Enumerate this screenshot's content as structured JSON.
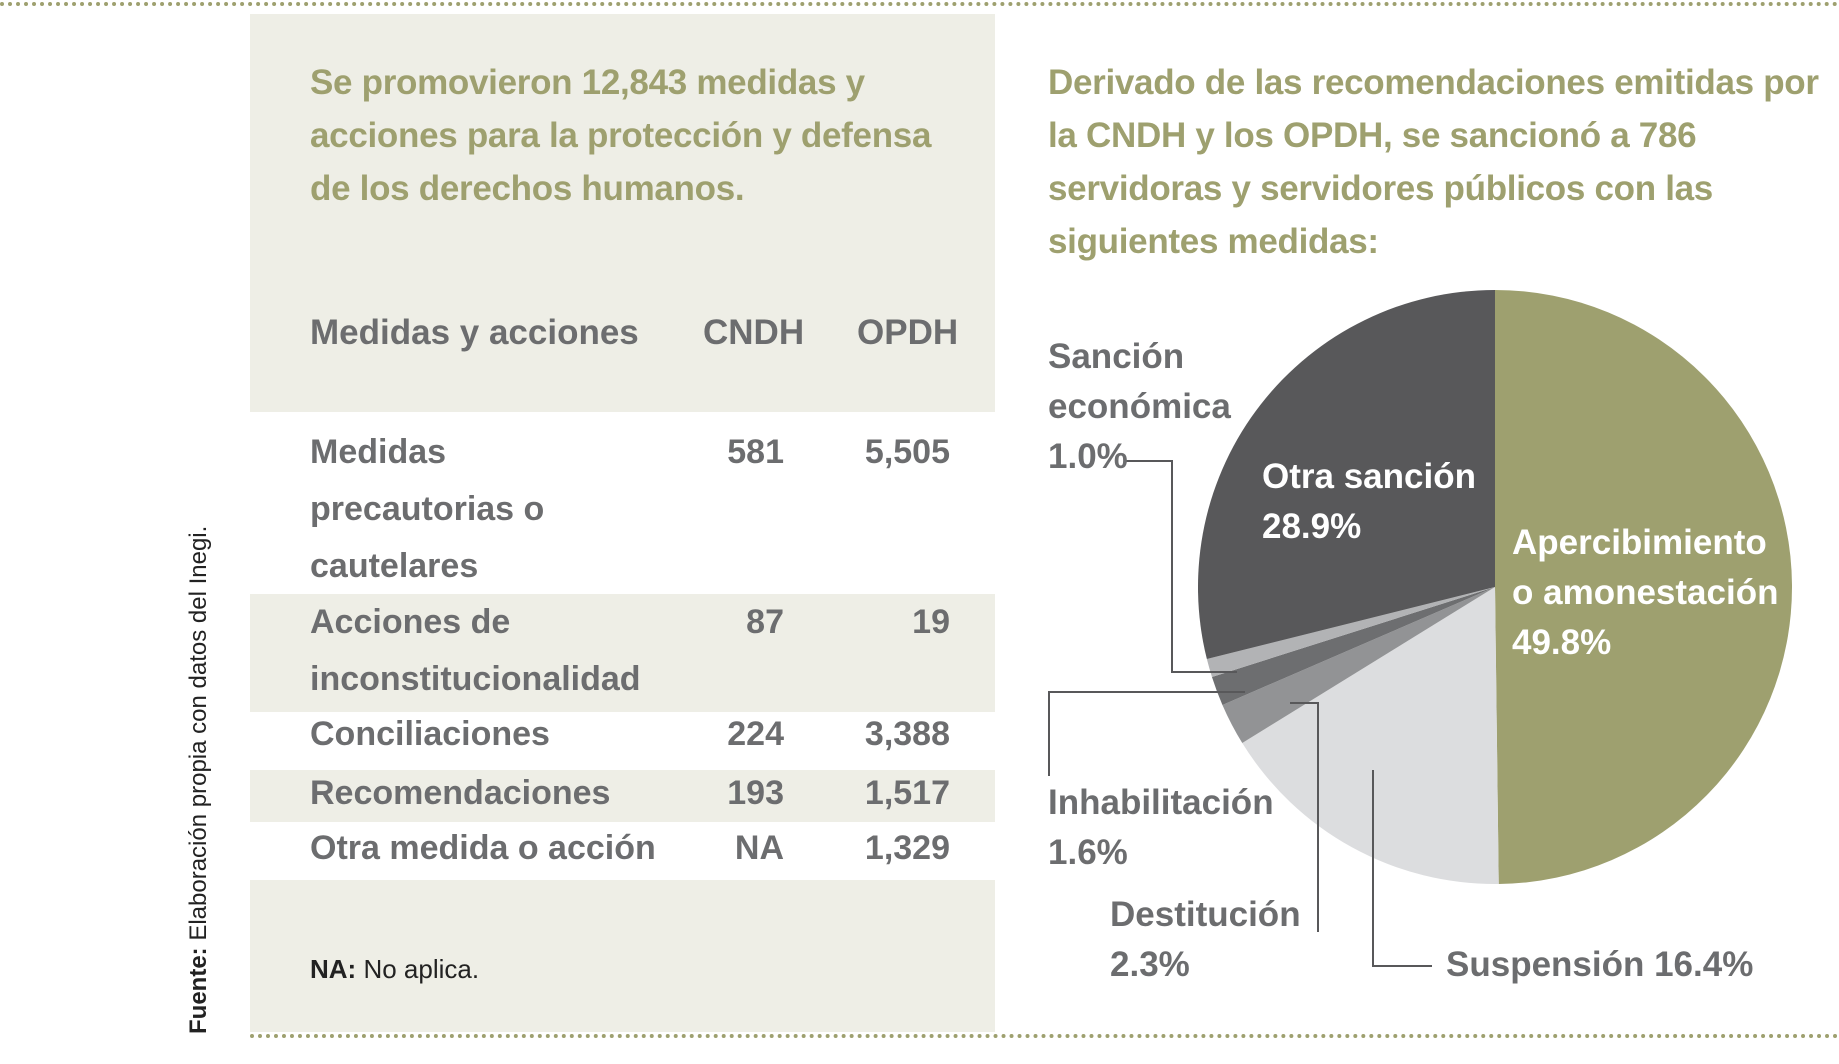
{
  "headline_left": "Se promovieron 12,843 medidas y acciones para la protección y defensa de los derechos humanos.",
  "headline_right": "Derivado de las recomendaciones emitidas por la CNDH y los OPDH, se sancionó a 786 servidoras y servidores públicos con las siguientes medidas:",
  "table": {
    "headers": [
      "Medidas y acciones",
      "CNDH",
      "OPDH"
    ],
    "rows": [
      {
        "label": [
          "Medidas",
          "precautorias o",
          "cautelares"
        ],
        "cndh": "581",
        "opdh": "5,505"
      },
      {
        "label": [
          "Acciones de",
          "inconstitucionalidad"
        ],
        "cndh": "87",
        "opdh": "19"
      },
      {
        "label": [
          "Conciliaciones"
        ],
        "cndh": "224",
        "opdh": "3,388"
      },
      {
        "label": [
          "Recomendaciones"
        ],
        "cndh": "193",
        "opdh": "1,517"
      },
      {
        "label": [
          "Otra medida o acción"
        ],
        "cndh": "NA",
        "opdh": "1,329"
      }
    ]
  },
  "note": {
    "bold": "NA:",
    "text": " No aplica."
  },
  "source": {
    "bold": "Fuente:",
    "text": " Elaboración propia con datos del Inegi."
  },
  "chart_data": {
    "type": "pie",
    "slices": [
      {
        "label": "Apercibimiento o amonestación",
        "lines": [
          "Apercibimiento",
          "o amonestación",
          "49.8%"
        ],
        "value": 49.8,
        "color": "#9ea06f"
      },
      {
        "label": "Suspensión",
        "lines": [
          "Suspensión 16.4%"
        ],
        "value": 16.4,
        "color": "#dcdddf"
      },
      {
        "label": "Destitución",
        "lines": [
          "Destitución",
          "2.3%"
        ],
        "value": 2.3,
        "color": "#929395"
      },
      {
        "label": "Inhabilitación",
        "lines": [
          "Inhabilitación",
          "1.6%"
        ],
        "value": 1.6,
        "color": "#6d6e70"
      },
      {
        "label": "Sanción económica",
        "lines": [
          "Sanción",
          "económica",
          "1.0%"
        ],
        "value": 1.0,
        "color": "#b2b3b5"
      },
      {
        "label": "Otra sanción",
        "lines": [
          "Otra sanción",
          "28.9%"
        ],
        "value": 28.9,
        "color": "#58585a"
      }
    ]
  }
}
